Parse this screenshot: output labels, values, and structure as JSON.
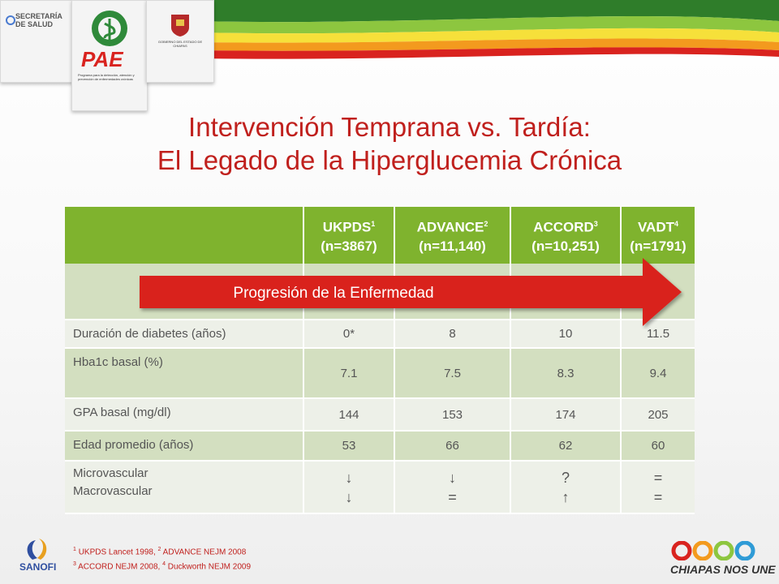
{
  "header": {
    "logo_secretaria": "SECRETARÍA DE SALUD",
    "logo_pae": "PAE",
    "logo_pae_sub": "Programa para la detección, atención y prevención de enfermedades crónicas",
    "logo_gobierno": "GOBIERNO DEL ESTADO DE CHIAPAS"
  },
  "title": {
    "line1": "Intervención Temprana vs. Tardía:",
    "line2": "El Legado de la Hiperglucemia Crónica"
  },
  "table": {
    "columns": [
      {
        "name": "UKPDS",
        "sup": "1",
        "n": "(n=3867)"
      },
      {
        "name": "ADVANCE",
        "sup": "2",
        "n": "(n=11,140)"
      },
      {
        "name": "ACCORD",
        "sup": "3",
        "n": "(n=10,251)"
      },
      {
        "name": "VADT",
        "sup": "4",
        "n": "(n=1791)"
      }
    ],
    "progress_label": "Progresión de la Enfermedad",
    "rows": [
      {
        "label": "Duración de diabetes (años)",
        "values": [
          "0*",
          "8",
          "10",
          "11.5"
        ]
      },
      {
        "label": "Hba1c basal (%)",
        "values": [
          "7.1",
          "7.5",
          "8.3",
          "9.4"
        ]
      },
      {
        "label": "GPA basal (mg/dl)",
        "values": [
          "144",
          "153",
          "174",
          "205"
        ]
      },
      {
        "label": "Edad promedio (años)",
        "values": [
          "53",
          "66",
          "62",
          "60"
        ]
      }
    ],
    "last_row": {
      "label1": "Microvascular",
      "label2": "Macrovascular",
      "micro": [
        "↓",
        "↓",
        "?",
        "="
      ],
      "macro": [
        "↓",
        "=",
        "↑",
        "="
      ]
    }
  },
  "footnotes": {
    "l1_a": "UKPDS Lancet 1998,",
    "l1_b": "ADVANCE NEJM 2008",
    "l2_a": "ACCORD NEJM 2008,",
    "l2_b": "Duckworth NEJM 2009",
    "s1": "1",
    "s2": "2",
    "s3": "3",
    "s4": "4"
  },
  "footer": {
    "sanofi": "SANOFI",
    "chiapas": "CHIAPAS NOS UNE"
  },
  "colors": {
    "title": "#c0201d",
    "header_green": "#7fb32e",
    "arrow_red": "#d9231f"
  }
}
